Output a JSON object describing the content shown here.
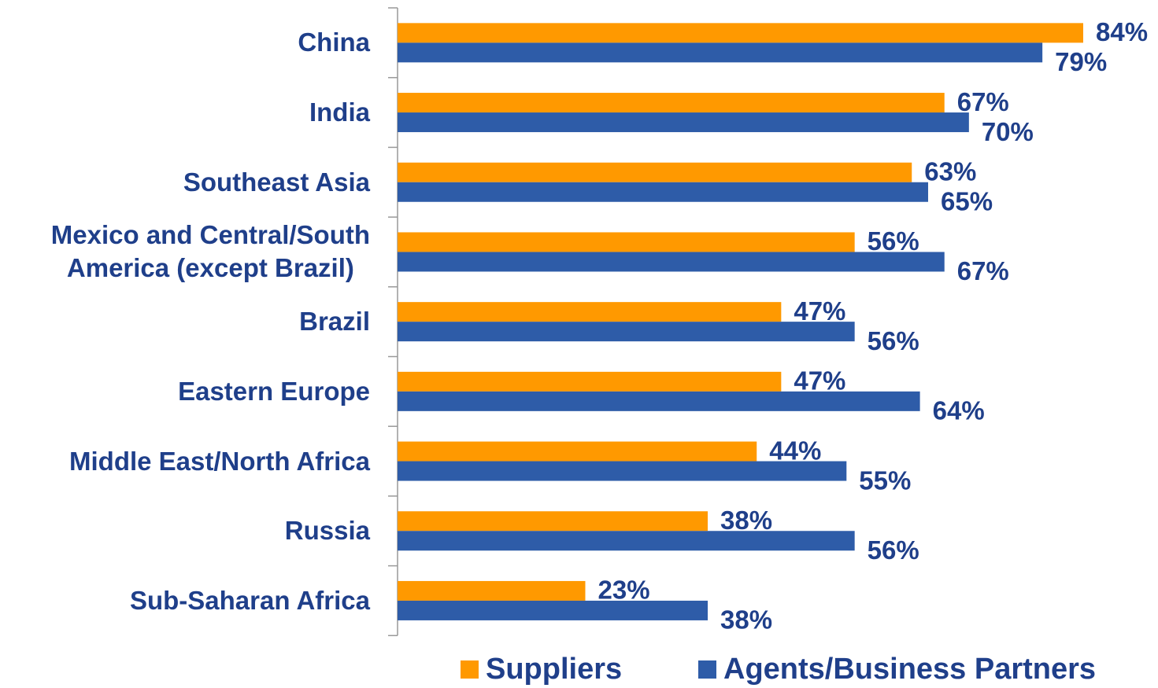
{
  "chart_data": {
    "type": "bar",
    "orientation": "horizontal",
    "categories": [
      "China",
      "India",
      "Southeast Asia",
      "Mexico and Central/South\nAmerica (except Brazil)",
      "Brazil",
      "Eastern Europe",
      "Middle East/North Africa",
      "Russia",
      "Sub-Saharan Africa"
    ],
    "series": [
      {
        "name": "Suppliers",
        "color": "#ff9900",
        "values": [
          84,
          67,
          63,
          56,
          47,
          47,
          44,
          38,
          23
        ],
        "value_labels": [
          "84%",
          "67%",
          "63%",
          "56%",
          "47%",
          "47%",
          "44%",
          "38%",
          "23%"
        ]
      },
      {
        "name": "Agents/Business Partners",
        "color": "#2e5ca8",
        "values": [
          79,
          70,
          65,
          67,
          56,
          64,
          55,
          56,
          38
        ],
        "value_labels": [
          "79%",
          "70%",
          "65%",
          "67%",
          "56%",
          "64%",
          "55%",
          "56%",
          "38%"
        ]
      }
    ],
    "legend": "bottom"
  }
}
